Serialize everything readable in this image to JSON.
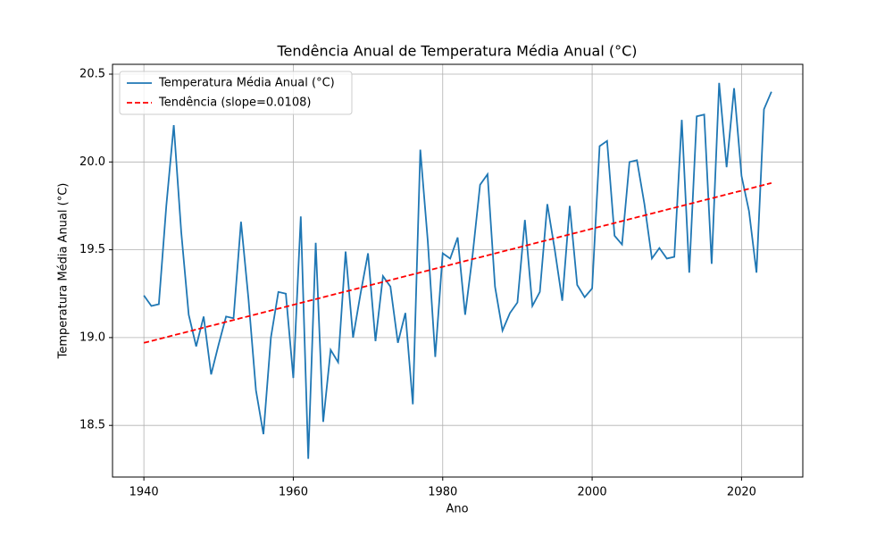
{
  "chart_data": {
    "type": "line",
    "title": "Tendência Anual de Temperatura Média Anual (°C)",
    "x_label": "Ano",
    "y_label": "Temperatura Média Anual (°C)",
    "x": [
      1940,
      1941,
      1942,
      1943,
      1944,
      1945,
      1946,
      1947,
      1948,
      1949,
      1950,
      1951,
      1952,
      1953,
      1954,
      1955,
      1956,
      1957,
      1958,
      1959,
      1960,
      1961,
      1962,
      1963,
      1964,
      1965,
      1966,
      1967,
      1968,
      1969,
      1970,
      1971,
      1972,
      1973,
      1974,
      1975,
      1976,
      1977,
      1978,
      1979,
      1980,
      1981,
      1982,
      1983,
      1984,
      1985,
      1986,
      1987,
      1988,
      1989,
      1990,
      1991,
      1992,
      1993,
      1994,
      1995,
      1996,
      1997,
      1998,
      1999,
      2000,
      2001,
      2002,
      2003,
      2004,
      2005,
      2006,
      2007,
      2008,
      2009,
      2010,
      2011,
      2012,
      2013,
      2014,
      2015,
      2016,
      2017,
      2018,
      2019,
      2020,
      2021,
      2022,
      2023,
      2024
    ],
    "series": [
      {
        "name": "Temperatura Média Anual (°C)",
        "color": "#1f77b4",
        "style": "solid",
        "values": [
          19.24,
          19.18,
          19.19,
          19.75,
          20.21,
          19.6,
          19.13,
          18.95,
          19.12,
          18.79,
          18.96,
          19.12,
          19.11,
          19.66,
          19.22,
          18.7,
          18.45,
          19.0,
          19.26,
          19.25,
          18.77,
          19.69,
          18.31,
          19.54,
          18.52,
          18.93,
          18.86,
          19.49,
          19.0,
          19.25,
          19.48,
          18.98,
          19.35,
          19.29,
          18.97,
          19.14,
          18.62,
          20.07,
          19.55,
          18.89,
          19.48,
          19.45,
          19.57,
          19.13,
          19.47,
          19.87,
          19.93,
          19.29,
          19.04,
          19.14,
          19.2,
          19.67,
          19.18,
          19.26,
          19.76,
          19.5,
          19.21,
          19.75,
          19.3,
          19.23,
          19.28,
          20.09,
          20.12,
          19.58,
          19.53,
          20.0,
          20.01,
          19.76,
          19.45,
          19.51,
          19.45,
          19.46,
          20.24,
          19.37,
          20.26,
          20.27,
          19.42,
          20.45,
          19.97,
          20.42,
          19.92,
          19.72,
          19.37,
          20.3,
          20.4
        ]
      },
      {
        "name": "Tendência (slope=0.0108)",
        "color": "#ff0000",
        "style": "dashed",
        "x": [
          1940,
          2024
        ],
        "values": [
          18.97,
          19.88
        ]
      }
    ],
    "xlim": [
      1935.8,
      2028.2
    ],
    "xticks": [
      1940,
      1960,
      1980,
      2000,
      2020
    ],
    "ylim": [
      18.206,
      20.556
    ],
    "yticks": [
      {
        "value": 18.5,
        "label": "18.5"
      },
      {
        "value": 19.0,
        "label": "19.0"
      },
      {
        "value": 19.5,
        "label": "19.5"
      },
      {
        "value": 20.0,
        "label": "20.0"
      },
      {
        "value": 20.5,
        "label": "20.5"
      }
    ],
    "grid": true,
    "legend": "upper left"
  }
}
